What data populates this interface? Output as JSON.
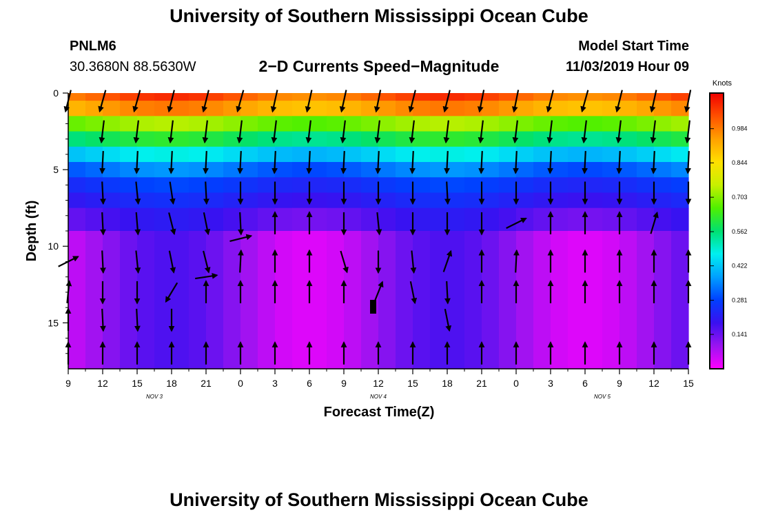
{
  "header": {
    "title": "University of Southern Mississippi Ocean Cube",
    "station_id": "PNLM6",
    "station_coords": "30.3680N 88.5630W",
    "plot_title": "2−D Currents Speed−Magnitude",
    "model_start_label": "Model Start Time",
    "model_start_value": "11/03/2019 Hour 09"
  },
  "footer": {
    "title": "University of Southern Mississippi Ocean Cube"
  },
  "chart_data": {
    "type": "heatmap",
    "xlabel": "Forecast Time(Z)",
    "ylabel": "Depth (ft)",
    "x_ticks": [
      "9",
      "12",
      "15",
      "18",
      "21",
      "0",
      "3",
      "6",
      "9",
      "12",
      "15",
      "18",
      "21",
      "0",
      "3",
      "6",
      "9",
      "12",
      "15"
    ],
    "x_hours_from_start": [
      0,
      3,
      6,
      9,
      12,
      15,
      18,
      21,
      24,
      27,
      30,
      33,
      36,
      39,
      42,
      45,
      48,
      51,
      54
    ],
    "x_range_hours": [
      0,
      54
    ],
    "date_labels": [
      {
        "label": "NOV 3",
        "at_hour": 7.5
      },
      {
        "label": "NOV 4",
        "at_hour": 27
      },
      {
        "label": "NOV 5",
        "at_hour": 46.5
      }
    ],
    "y_ticks": [
      0,
      5,
      10,
      15
    ],
    "y_range_ft": [
      0,
      18
    ],
    "y_inverted": true,
    "colorbar": {
      "title": "Knots",
      "ticks": [
        0.141,
        0.281,
        0.422,
        0.562,
        0.703,
        0.844,
        0.984
      ],
      "range": [
        0,
        1.13
      ],
      "colors": [
        "#ff00ff",
        "#9a14f0",
        "#3a10f0",
        "#0040ff",
        "#00a0ff",
        "#00f0f0",
        "#00e070",
        "#50f000",
        "#c8f000",
        "#ffe000",
        "#ffa000",
        "#ff5000",
        "#f00000"
      ]
    },
    "depth_levels_ft": [
      0.5,
      1.5,
      2.5,
      3.5,
      4.5,
      5.5,
      6.5,
      7.5,
      8.5,
      9.5,
      10.5,
      11.5,
      12.5,
      13.5,
      14.5,
      15.5,
      16.5,
      17.5
    ],
    "speed_profile": [
      {
        "top": 0,
        "bottom": 0.5,
        "knots": 1.02,
        "variation": 0.06
      },
      {
        "top": 0.5,
        "bottom": 1.5,
        "knots": 0.94,
        "variation": 0.05
      },
      {
        "top": 1.5,
        "bottom": 2.5,
        "knots": 0.7,
        "variation": 0.04
      },
      {
        "top": 2.5,
        "bottom": 3.5,
        "knots": 0.58,
        "variation": 0.04
      },
      {
        "top": 3.5,
        "bottom": 4.5,
        "knots": 0.44,
        "variation": 0.04
      },
      {
        "top": 4.5,
        "bottom": 5.5,
        "knots": 0.33,
        "variation": 0.04
      },
      {
        "top": 5.5,
        "bottom": 6.5,
        "knots": 0.26,
        "variation": 0.03
      },
      {
        "top": 6.5,
        "bottom": 7.5,
        "knots": 0.22,
        "variation": 0.03
      },
      {
        "top": 7.5,
        "bottom": 9.0,
        "knots": 0.17,
        "variation": 0.04
      },
      {
        "top": 9.0,
        "bottom": 18.0,
        "knots": 0.1,
        "variation": 0.09
      }
    ],
    "arrow_depths_ft": [
      0.5,
      2.5,
      4.5,
      6.5,
      8.5,
      9.5,
      11.0,
      13.0,
      14.8,
      17.0
    ],
    "arrows": [
      {
        "depth": 0.5,
        "vectors": [
          [
            0,
            -0.25,
            -1
          ],
          [
            3,
            -0.28,
            -1
          ],
          [
            6,
            -0.28,
            -1
          ],
          [
            9,
            -0.25,
            -1
          ],
          [
            12,
            -0.25,
            -1
          ],
          [
            15,
            -0.28,
            -1
          ],
          [
            18,
            -0.22,
            -1
          ],
          [
            21,
            -0.22,
            -1
          ],
          [
            24,
            -0.22,
            -1
          ],
          [
            27,
            -0.2,
            -1
          ],
          [
            30,
            -0.25,
            -1
          ],
          [
            33,
            -0.25,
            -1
          ],
          [
            36,
            -0.2,
            -1
          ],
          [
            39,
            -0.2,
            -1
          ],
          [
            42,
            -0.25,
            -1
          ],
          [
            45,
            -0.28,
            -1
          ],
          [
            48,
            -0.25,
            -1
          ],
          [
            51,
            -0.22,
            -1
          ],
          [
            54,
            -0.2,
            -1
          ]
        ]
      },
      {
        "depth": 2.5,
        "vectors": [
          [
            3,
            -0.12,
            -1
          ],
          [
            6,
            -0.12,
            -1
          ],
          [
            9,
            -0.12,
            -1
          ],
          [
            12,
            -0.12,
            -1
          ],
          [
            15,
            -0.12,
            -1
          ],
          [
            18,
            -0.12,
            -1
          ],
          [
            21,
            -0.12,
            -1
          ],
          [
            24,
            -0.12,
            -1
          ],
          [
            27,
            -0.12,
            -1
          ],
          [
            30,
            -0.12,
            -1
          ],
          [
            33,
            -0.12,
            -1
          ],
          [
            36,
            -0.12,
            -1
          ],
          [
            39,
            -0.12,
            -1
          ],
          [
            42,
            -0.12,
            -1
          ],
          [
            45,
            -0.12,
            -1
          ],
          [
            48,
            -0.12,
            -1
          ],
          [
            51,
            -0.12,
            -1
          ],
          [
            54,
            -0.12,
            -1
          ]
        ]
      },
      {
        "depth": 4.5,
        "vectors": [
          [
            3,
            -0.05,
            -1
          ],
          [
            6,
            -0.05,
            -1
          ],
          [
            9,
            -0.05,
            -1
          ],
          [
            12,
            -0.05,
            -1
          ],
          [
            15,
            -0.05,
            -1
          ],
          [
            18,
            -0.05,
            -1
          ],
          [
            21,
            -0.05,
            -1
          ],
          [
            24,
            -0.05,
            -1
          ],
          [
            27,
            -0.05,
            -1
          ],
          [
            30,
            -0.05,
            -1
          ],
          [
            33,
            -0.05,
            -1
          ],
          [
            36,
            -0.05,
            -1
          ],
          [
            39,
            -0.05,
            -1
          ],
          [
            42,
            -0.05,
            -1
          ],
          [
            45,
            -0.05,
            -1
          ],
          [
            48,
            -0.05,
            -1
          ],
          [
            51,
            -0.05,
            -1
          ],
          [
            54,
            -0.05,
            -1
          ]
        ]
      },
      {
        "depth": 6.5,
        "vectors": [
          [
            3,
            0.05,
            -1
          ],
          [
            6,
            0.1,
            -1
          ],
          [
            9,
            0.15,
            -1
          ],
          [
            12,
            0.05,
            -1
          ],
          [
            15,
            0,
            -1
          ],
          [
            18,
            0,
            -1
          ],
          [
            21,
            0,
            -1
          ],
          [
            24,
            0,
            -1
          ],
          [
            27,
            0,
            -1
          ],
          [
            30,
            0,
            -1
          ],
          [
            33,
            0.05,
            -1
          ],
          [
            36,
            0,
            -1
          ],
          [
            39,
            0,
            -1
          ],
          [
            42,
            0,
            -1
          ],
          [
            45,
            0,
            -1
          ],
          [
            48,
            0,
            -1
          ],
          [
            51,
            0,
            -1
          ],
          [
            54,
            0,
            -1
          ]
        ]
      },
      {
        "depth": 8.5,
        "vectors": [
          [
            3,
            0.05,
            -1
          ],
          [
            6,
            0.08,
            -1
          ],
          [
            9,
            0.25,
            -1
          ],
          [
            12,
            0.2,
            -1
          ],
          [
            15,
            0.05,
            -1
          ],
          [
            18,
            0,
            1
          ],
          [
            21,
            0,
            1
          ],
          [
            24,
            0,
            -1
          ],
          [
            27,
            0.1,
            -1
          ],
          [
            30,
            0,
            -1
          ],
          [
            33,
            0,
            -1
          ],
          [
            36,
            0,
            -1
          ],
          [
            39,
            1,
            0.5
          ],
          [
            42,
            0,
            1
          ],
          [
            45,
            0,
            1
          ],
          [
            48,
            0,
            1
          ],
          [
            51,
            0.3,
            1
          ]
        ]
      },
      {
        "depth": 9.5,
        "vectors": [
          [
            15,
            1,
            0.25
          ]
        ]
      },
      {
        "depth": 11.0,
        "vectors": [
          [
            0,
            1,
            0.5
          ],
          [
            3,
            0.05,
            -1
          ],
          [
            6,
            0.1,
            -1
          ],
          [
            9,
            0.2,
            -1
          ],
          [
            12,
            0.25,
            -1
          ],
          [
            15,
            0.05,
            1
          ],
          [
            18,
            0,
            1
          ],
          [
            21,
            0,
            1
          ],
          [
            24,
            0.3,
            -1
          ],
          [
            27,
            0,
            -1
          ],
          [
            30,
            0.1,
            -1
          ],
          [
            33,
            0.35,
            1
          ],
          [
            36,
            0,
            1
          ],
          [
            39,
            0.05,
            1
          ],
          [
            42,
            0,
            1
          ],
          [
            45,
            0,
            1
          ],
          [
            48,
            0,
            1
          ],
          [
            51,
            0,
            1
          ],
          [
            54,
            0,
            1
          ]
        ]
      },
      {
        "depth": 12.0,
        "vectors": [
          [
            12,
            1,
            0.15
          ]
        ]
      },
      {
        "depth": 13.0,
        "vectors": [
          [
            0,
            0.1,
            1
          ],
          [
            3,
            0,
            -1
          ],
          [
            6,
            0,
            -1
          ],
          [
            9,
            -0.6,
            -1
          ],
          [
            12,
            0,
            1
          ],
          [
            15,
            0,
            1
          ],
          [
            18,
            0,
            1
          ],
          [
            21,
            0,
            1
          ],
          [
            24,
            0,
            1
          ],
          [
            27,
            0.4,
            1
          ],
          [
            30,
            0.2,
            -1
          ],
          [
            33,
            0.05,
            -1
          ],
          [
            36,
            0,
            1
          ],
          [
            39,
            0,
            1
          ],
          [
            42,
            0,
            1
          ],
          [
            45,
            0,
            1
          ],
          [
            48,
            0,
            1
          ],
          [
            51,
            0,
            1
          ],
          [
            54,
            0,
            1
          ]
        ]
      },
      {
        "depth": 14.8,
        "vectors": [
          [
            0,
            0,
            1
          ],
          [
            3,
            0.05,
            -1
          ],
          [
            6,
            0.05,
            -1
          ],
          [
            9,
            0,
            -1
          ],
          [
            33,
            0.2,
            -1
          ]
        ]
      },
      {
        "depth": 17.0,
        "vectors": [
          [
            0,
            0,
            1
          ],
          [
            3,
            0,
            1
          ],
          [
            6,
            0,
            1
          ],
          [
            9,
            0,
            1
          ],
          [
            12,
            0,
            1
          ],
          [
            15,
            0,
            1
          ],
          [
            18,
            0,
            1
          ],
          [
            21,
            0,
            1
          ],
          [
            24,
            0,
            1
          ],
          [
            27,
            0,
            1
          ],
          [
            30,
            0,
            1
          ],
          [
            33,
            0,
            1
          ],
          [
            36,
            0,
            1
          ],
          [
            39,
            0,
            1
          ],
          [
            42,
            0,
            1
          ],
          [
            45,
            0,
            1
          ],
          [
            48,
            0,
            1
          ],
          [
            51,
            0,
            1
          ],
          [
            54,
            0,
            1
          ]
        ]
      }
    ]
  }
}
